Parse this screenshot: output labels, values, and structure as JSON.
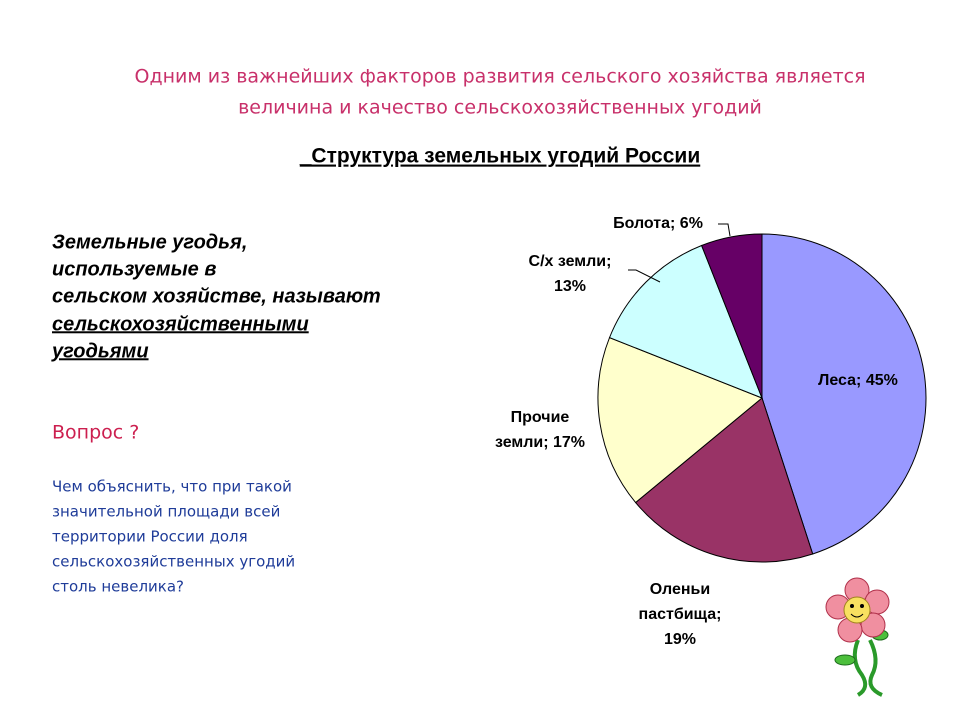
{
  "header": {
    "lines": [
      "Одним из важнейших факторов развития сельского хозяйства является",
      "величина и качество сельскохозяйственных угодий"
    ]
  },
  "definition": {
    "lines": [
      "Земельные угодья,",
      "используемые в",
      "сельском хозяйстве, называют",
      "сельскохозяйственными",
      "угодьями"
    ]
  },
  "question": {
    "title": "Вопрос ?",
    "lines": [
      "Чем объяснить, что при такой",
      "значительной площади всей",
      "территории России доля",
      "сельскохозяйственных угодий",
      "столь невелика?"
    ]
  },
  "chart_data": {
    "type": "pie",
    "title": "_Структура земельных угодий России",
    "categories": [
      "Леса",
      "Оленьи пастбища",
      "Прочие земли",
      "С/х земли",
      "Болота"
    ],
    "values": [
      45,
      19,
      17,
      13,
      6
    ],
    "value_labels": [
      [
        "Леса; 45%"
      ],
      [
        "Оленьи",
        "пастбища;",
        "19%"
      ],
      [
        "Прочие",
        "земли; 17%"
      ],
      [
        "С/х земли;",
        "13%"
      ],
      [
        "Болота; 6%"
      ]
    ],
    "colors": [
      "#9999ff",
      "#993366",
      "#ffffcc",
      "#ccffff",
      "#660066"
    ]
  }
}
